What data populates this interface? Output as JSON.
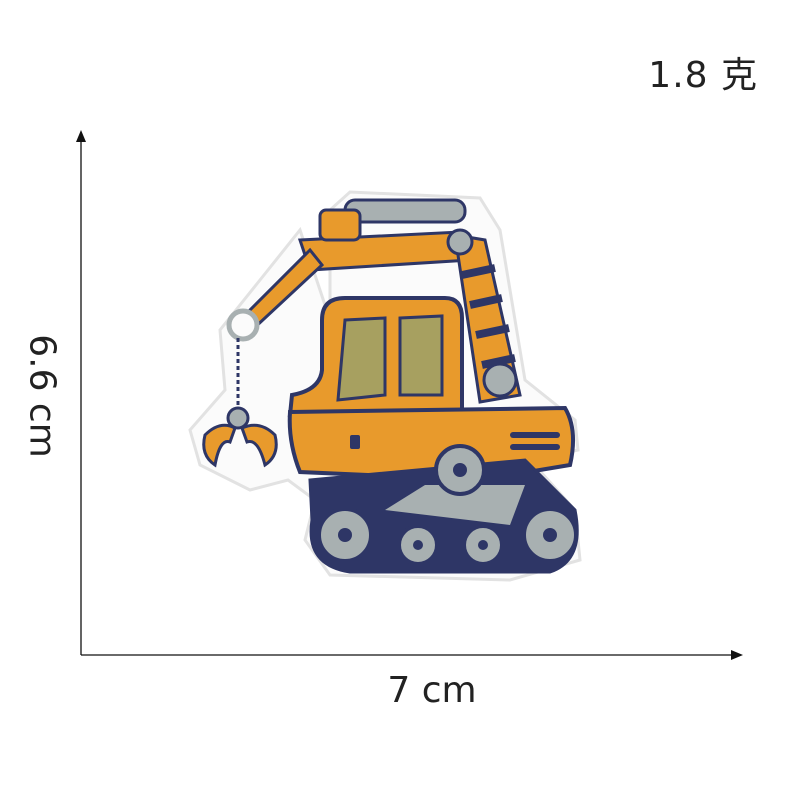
{
  "weight_text": "1.8 克",
  "dimensions": {
    "width_label": "7 cm",
    "height_label": "6.6 cm"
  },
  "colors": {
    "orange": "#e89a2c",
    "navy": "#2e3666",
    "gray": "#a8b0b1",
    "khaki": "#a7a060",
    "outline": "#d6d6d6"
  }
}
